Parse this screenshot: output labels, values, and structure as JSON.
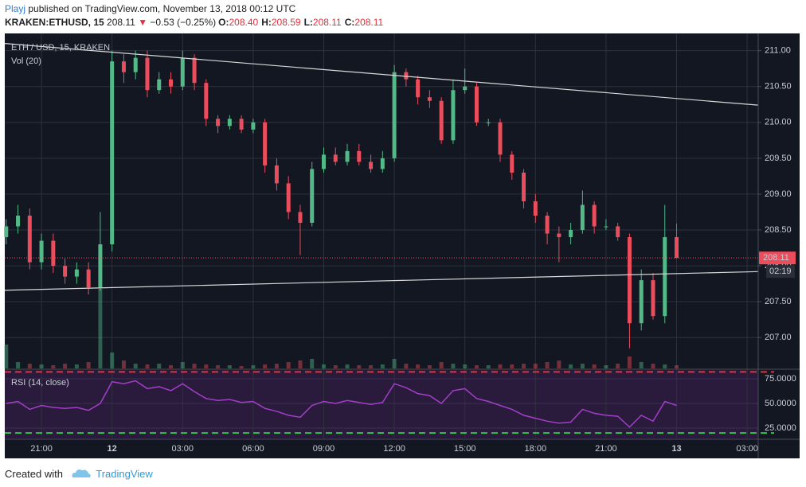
{
  "header": {
    "author": "Playj",
    "published": "published on TradingView.com, November 13, 2018 00:12 UTC",
    "symbol": "KRAKEN:ETHUSD, 15",
    "last": "208.11",
    "arrow": "▼",
    "change": "−0.53 (−0.25%)",
    "ohlc": [
      {
        "label": "O:",
        "value": "208.40"
      },
      {
        "label": "H:",
        "value": "208.59"
      },
      {
        "label": "L:",
        "value": "208.11"
      },
      {
        "label": "C:",
        "value": "208.11"
      }
    ]
  },
  "chart_data": {
    "type": "candlestick",
    "legend": "ETH / USD, 15, KRAKEN",
    "volume_label": "Vol (20)",
    "countdown": "02:19",
    "xlim": [
      -1.56,
      30.47
    ],
    "xticks": [
      {
        "value": 0,
        "label": "21:00"
      },
      {
        "value": 3,
        "label": "12"
      },
      {
        "value": 6,
        "label": "03:00"
      },
      {
        "value": 9,
        "label": "06:00"
      },
      {
        "value": 12,
        "label": "09:00"
      },
      {
        "value": 15,
        "label": "12:00"
      },
      {
        "value": 18,
        "label": "15:00"
      },
      {
        "value": 21,
        "label": "18:00"
      },
      {
        "value": 24,
        "label": "21:00"
      },
      {
        "value": 27,
        "label": "13"
      },
      {
        "value": 30,
        "label": "03:00"
      }
    ],
    "ylim": [
      206.57,
      211.24
    ],
    "yticks": [
      {
        "value": 207,
        "label": "207.00"
      },
      {
        "value": 207.5,
        "label": "207.50"
      },
      {
        "value": 208,
        "label": "208.00"
      },
      {
        "value": 208.5,
        "label": "208.50"
      },
      {
        "value": 209,
        "label": "209.00"
      },
      {
        "value": 209.5,
        "label": "209.50"
      },
      {
        "value": 210,
        "label": "210.00"
      },
      {
        "value": 210.5,
        "label": "210.50"
      },
      {
        "value": 211,
        "label": "211.00"
      }
    ],
    "grid": true,
    "up_color": "#53b987",
    "down_color": "#eb4d5c",
    "candles": {
      "x": [
        -1.5,
        -1,
        -0.5,
        0,
        0.5,
        1,
        1.5,
        2,
        2.5,
        3,
        3.5,
        4,
        4.5,
        5,
        5.5,
        6,
        6.5,
        7,
        7.5,
        8,
        8.5,
        9,
        9.5,
        10,
        10.5,
        11,
        11.5,
        12,
        12.5,
        13,
        13.5,
        14,
        14.5,
        15,
        15.5,
        16,
        16.5,
        17,
        17.5,
        18,
        18.5,
        19,
        19.5,
        20,
        20.5,
        21,
        21.5,
        22,
        22.5,
        23,
        23.5,
        24,
        24.5,
        25,
        25.5,
        26,
        26.5,
        27
      ],
      "open": [
        208.4,
        208.55,
        208.7,
        208.05,
        208.35,
        208.0,
        207.85,
        207.95,
        207.7,
        208.3,
        210.85,
        210.7,
        210.9,
        210.45,
        210.6,
        210.5,
        210.9,
        210.55,
        210.05,
        209.95,
        210.05,
        209.9,
        210.0,
        209.4,
        209.15,
        208.75,
        208.6,
        209.35,
        209.55,
        209.45,
        209.6,
        209.45,
        209.35,
        209.5,
        210.7,
        210.6,
        210.35,
        210.3,
        209.75,
        210.45,
        210.5,
        210.0,
        210.0,
        209.55,
        209.3,
        208.9,
        208.7,
        208.45,
        208.4,
        208.5,
        208.85,
        208.55,
        208.55,
        208.4,
        207.2,
        207.8,
        207.3,
        208.4
      ],
      "high": [
        208.65,
        208.85,
        208.8,
        208.45,
        208.45,
        208.1,
        208.05,
        208.05,
        208.75,
        211.0,
        210.95,
        211.0,
        211.0,
        210.7,
        210.7,
        211.0,
        210.95,
        210.6,
        210.1,
        210.1,
        210.1,
        210.05,
        210.05,
        209.5,
        209.25,
        208.85,
        209.45,
        209.65,
        209.65,
        209.7,
        209.7,
        209.55,
        209.6,
        210.8,
        210.75,
        210.65,
        210.45,
        210.35,
        210.6,
        210.75,
        210.55,
        210.05,
        210.05,
        209.6,
        209.35,
        209.0,
        208.75,
        208.55,
        208.6,
        209.05,
        208.9,
        208.65,
        208.6,
        208.45,
        207.95,
        207.9,
        208.85,
        208.59
      ],
      "low": [
        208.3,
        208.45,
        207.95,
        207.95,
        207.9,
        207.75,
        207.75,
        207.6,
        207.65,
        208.2,
        210.55,
        210.6,
        210.35,
        210.4,
        210.4,
        210.45,
        210.45,
        209.95,
        209.85,
        209.9,
        209.85,
        209.85,
        209.3,
        209.05,
        208.65,
        208.15,
        208.55,
        209.3,
        209.4,
        209.4,
        209.4,
        209.3,
        209.3,
        209.45,
        210.5,
        210.25,
        210.2,
        209.7,
        209.7,
        210.4,
        209.95,
        209.95,
        209.45,
        209.2,
        208.8,
        208.6,
        208.3,
        208.05,
        208.3,
        208.45,
        208.45,
        208.5,
        208.35,
        206.85,
        207.1,
        207.25,
        207.2,
        208.11
      ],
      "close": [
        208.55,
        208.7,
        208.05,
        208.35,
        208.0,
        207.85,
        207.95,
        207.7,
        208.3,
        210.85,
        210.7,
        210.9,
        210.45,
        210.6,
        210.5,
        210.9,
        210.55,
        210.05,
        209.95,
        210.05,
        209.9,
        210.0,
        209.4,
        209.15,
        208.75,
        208.6,
        209.35,
        209.55,
        209.45,
        209.6,
        209.45,
        209.35,
        209.5,
        210.7,
        210.6,
        210.35,
        210.3,
        209.75,
        210.45,
        210.5,
        210.0,
        210.0,
        209.55,
        209.3,
        208.9,
        208.7,
        208.45,
        208.4,
        208.5,
        208.85,
        208.55,
        208.55,
        208.4,
        207.2,
        207.8,
        207.3,
        208.4,
        208.11
      ],
      "volume": [
        30,
        8,
        6,
        5,
        4,
        6,
        5,
        8,
        100,
        20,
        10,
        6,
        5,
        6,
        4,
        8,
        6,
        5,
        4,
        4,
        3,
        4,
        5,
        6,
        8,
        10,
        12,
        5,
        4,
        5,
        4,
        4,
        5,
        12,
        6,
        5,
        4,
        8,
        6,
        5,
        4,
        4,
        5,
        5,
        6,
        6,
        8,
        10,
        5,
        6,
        5,
        4,
        6,
        15,
        8,
        6,
        5,
        4
      ]
    },
    "trendlines": [
      {
        "x": [
          -1.56,
          30.47
        ],
        "y": [
          211.1,
          210.24
        ]
      },
      {
        "x": [
          -1.56,
          30.47
        ],
        "y": [
          207.66,
          207.92
        ]
      }
    ],
    "rsi": {
      "label": "RSI (14, close)",
      "color": "#a23ec8",
      "ylim": [
        14.5,
        83.9
      ],
      "yticks": [
        {
          "value": 25,
          "label": "25.0000"
        },
        {
          "value": 50,
          "label": "50.0000"
        },
        {
          "value": 75,
          "label": "75.0000"
        }
      ],
      "bands": [
        82,
        20
      ],
      "values": [
        50,
        52,
        44,
        48,
        46,
        45,
        46,
        43,
        50,
        72,
        70,
        73,
        65,
        67,
        63,
        70,
        62,
        55,
        53,
        54,
        51,
        52,
        45,
        42,
        38,
        36,
        48,
        52,
        50,
        53,
        51,
        49,
        51,
        70,
        66,
        60,
        58,
        50,
        63,
        65,
        55,
        52,
        48,
        44,
        38,
        35,
        32,
        30,
        31,
        44,
        40,
        38,
        37,
        26,
        38,
        32,
        52,
        48
      ]
    }
  },
  "footer": {
    "created": "Created with",
    "brand": "TradingView"
  }
}
